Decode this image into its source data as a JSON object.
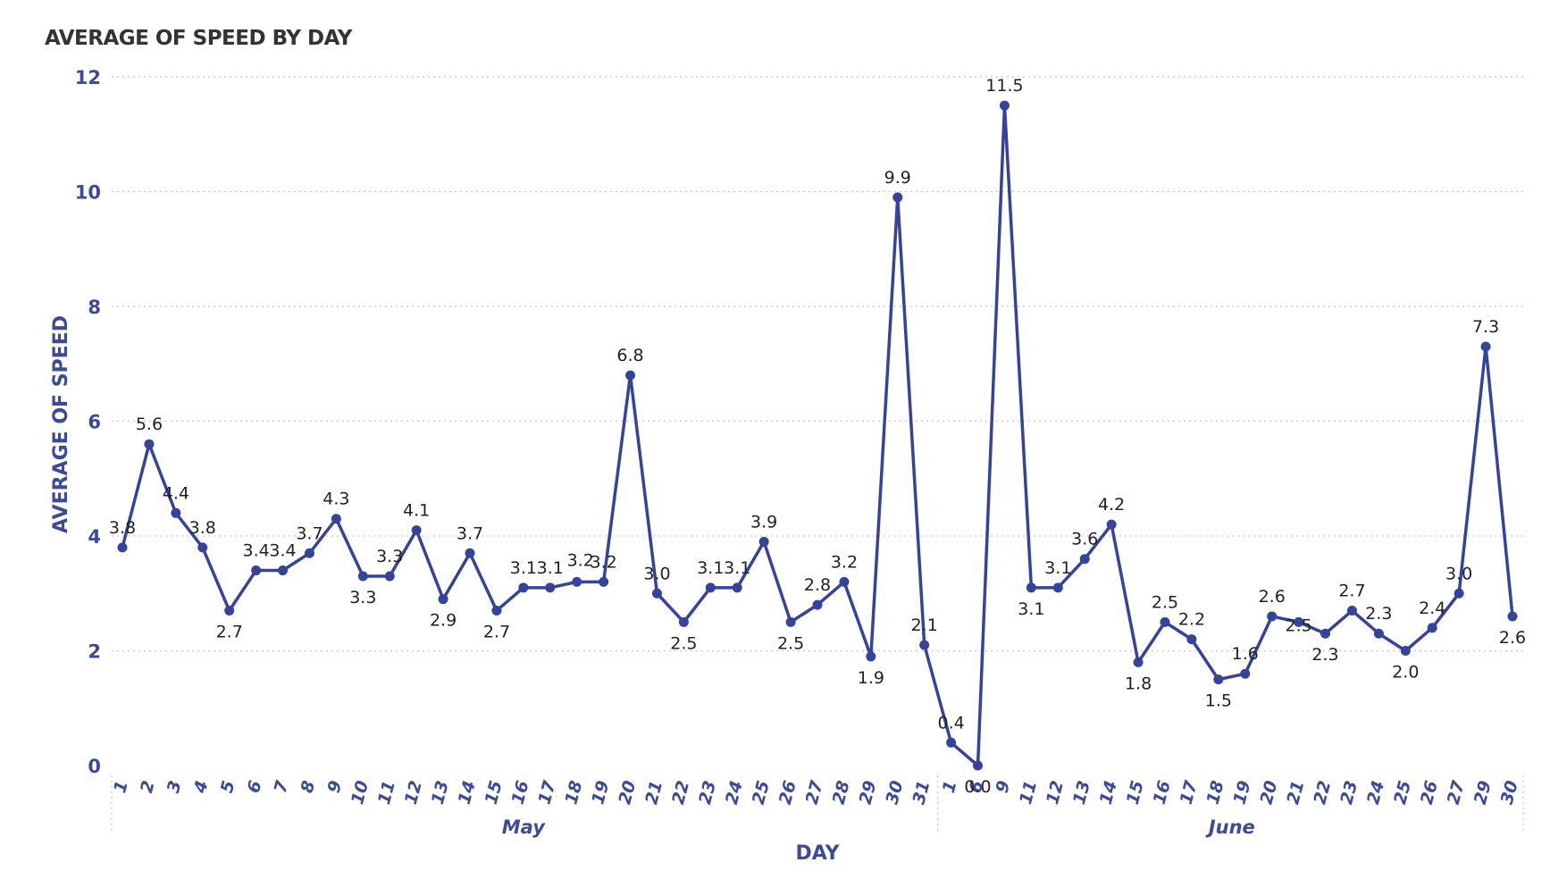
{
  "title": "AVERAGE OF SPEED BY DAY",
  "colors": {
    "series": "#35449a",
    "axis_text": "#3c4a9a",
    "grid": "#c8c8c8",
    "label": "#222222"
  },
  "chart_data": {
    "type": "line",
    "title": "AVERAGE OF SPEED BY DAY",
    "xlabel": "DAY",
    "ylabel": "AVERAGE OF SPEED",
    "ylim": [
      0,
      12
    ],
    "yticks": [
      0,
      2,
      4,
      6,
      8,
      10,
      12
    ],
    "grid": true,
    "legend": "none",
    "groups": [
      {
        "name": "May",
        "days": [
          "1",
          "2",
          "3",
          "4",
          "5",
          "6",
          "7",
          "8",
          "9",
          "10",
          "11",
          "12",
          "13",
          "14",
          "15",
          "16",
          "17",
          "18",
          "19",
          "20",
          "21",
          "22",
          "23",
          "24",
          "25",
          "26",
          "27",
          "28",
          "29",
          "30",
          "31"
        ],
        "values": [
          3.8,
          5.6,
          4.4,
          3.8,
          2.7,
          3.4,
          3.4,
          3.7,
          4.3,
          3.3,
          3.3,
          4.1,
          2.9,
          3.7,
          2.7,
          3.1,
          3.1,
          3.2,
          3.2,
          6.8,
          3.0,
          2.5,
          3.1,
          3.1,
          3.9,
          2.5,
          2.8,
          3.2,
          1.9,
          9.9,
          2.1
        ]
      },
      {
        "name": "June",
        "days": [
          "1",
          "6",
          "9",
          "11",
          "12",
          "13",
          "14",
          "15",
          "16",
          "17",
          "18",
          "19",
          "20",
          "21",
          "22",
          "23",
          "24",
          "25",
          "26",
          "27",
          "29",
          "30"
        ],
        "values": [
          0.4,
          0.0,
          11.5,
          3.1,
          3.1,
          3.6,
          4.2,
          1.8,
          2.5,
          2.2,
          1.5,
          1.6,
          2.6,
          2.5,
          2.3,
          2.7,
          2.3,
          2.0,
          2.4,
          3.0,
          7.3,
          2.6
        ]
      }
    ],
    "series": [
      {
        "values": [
          3.8,
          5.6,
          4.4,
          3.8,
          2.7,
          3.4,
          3.4,
          3.7,
          4.3,
          3.3,
          3.3,
          4.1,
          2.9,
          3.7,
          2.7,
          3.1,
          3.1,
          3.2,
          3.2,
          6.8,
          3.0,
          2.5,
          3.1,
          3.1,
          3.9,
          2.5,
          2.8,
          3.2,
          1.9,
          9.9,
          2.1,
          0.4,
          0.0,
          11.5,
          3.1,
          3.1,
          3.6,
          4.2,
          1.8,
          2.5,
          2.2,
          1.5,
          1.6,
          2.6,
          2.5,
          2.3,
          2.7,
          2.3,
          2.0,
          2.4,
          3.0,
          7.3,
          2.6
        ]
      }
    ],
    "data_labels": [
      "3.8",
      "5.6",
      "4.4",
      "3.8",
      "2.7",
      "3.4",
      "3.4",
      "3.7",
      "4.3",
      "3.3",
      "3.3",
      "4.1",
      "2.9",
      "3.7",
      "2.7",
      "3.1",
      "3.1",
      "",
      "3.2",
      "6.8",
      "3.0",
      "2.5",
      "3.1",
      "3.1",
      "3.9",
      "2.5",
      "2.8",
      "3.2",
      "1.9",
      "9.9",
      "2.1",
      "0.4",
      "0.0",
      "11.5",
      "3.1",
      "3.1",
      "3.6",
      "4.2",
      "1.8",
      "2.5",
      "2.2",
      "1.5",
      "1.6",
      "2.6",
      "",
      "2.3",
      "2.7",
      "2.3",
      "2.0",
      "2.4",
      "3.0",
      "7.3",
      "2.6"
    ],
    "extra_labels": [
      "3.2",
      "2.5"
    ]
  }
}
